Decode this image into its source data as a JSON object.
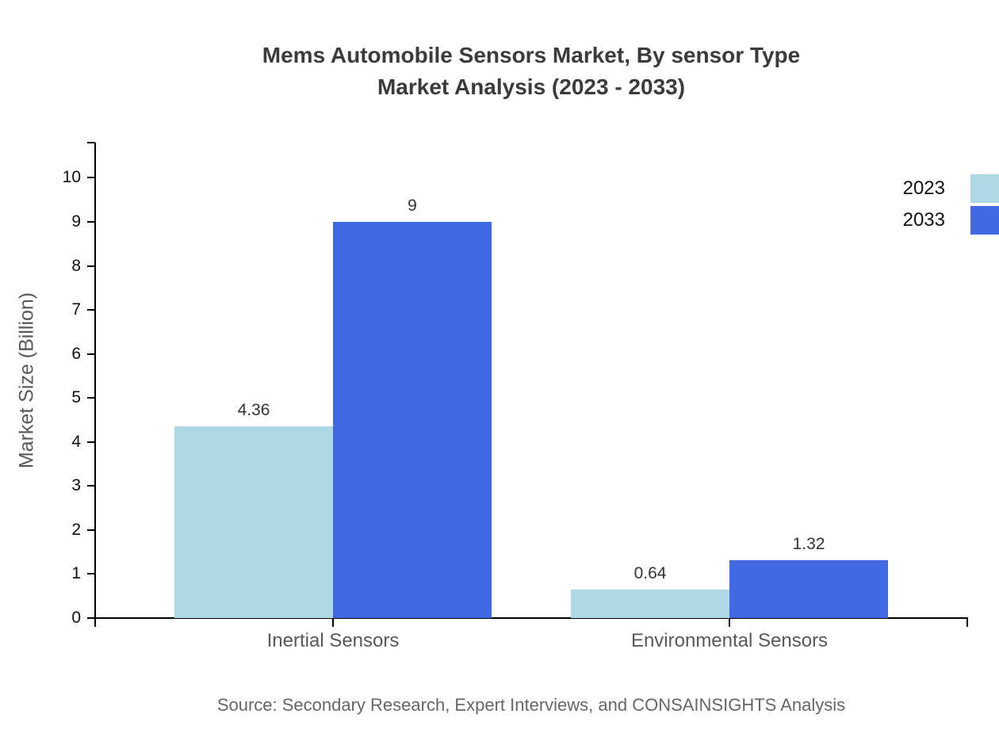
{
  "title": {
    "line1": "Mems Automobile Sensors Market, By sensor Type",
    "line2": "Market Analysis (2023 - 2033)"
  },
  "chart_data": {
    "type": "bar",
    "categories": [
      "Inertial Sensors",
      "Environmental Sensors"
    ],
    "series": [
      {
        "name": "2023",
        "color": "#ADD8E6",
        "values": [
          4.36,
          0.64
        ],
        "value_labels": [
          "4.36",
          "0.64"
        ]
      },
      {
        "name": "2033",
        "color": "#4169E1",
        "values": [
          9,
          1.32
        ],
        "value_labels": [
          "9",
          "1.32"
        ]
      }
    ],
    "title": "Mems Automobile Sensors Market, By sensor Type Market Analysis (2023 - 2033)",
    "xlabel": "",
    "ylabel": "Market Size (Billion)",
    "ylim": [
      0,
      10.8
    ],
    "y_ticks": [
      0,
      1,
      2,
      3,
      4,
      5,
      6,
      7,
      8,
      9,
      10
    ],
    "grid": false,
    "legend_position": "top-right"
  },
  "source": "Source: Secondary Research, Expert Interviews, and CONSAINSIGHTS Analysis"
}
